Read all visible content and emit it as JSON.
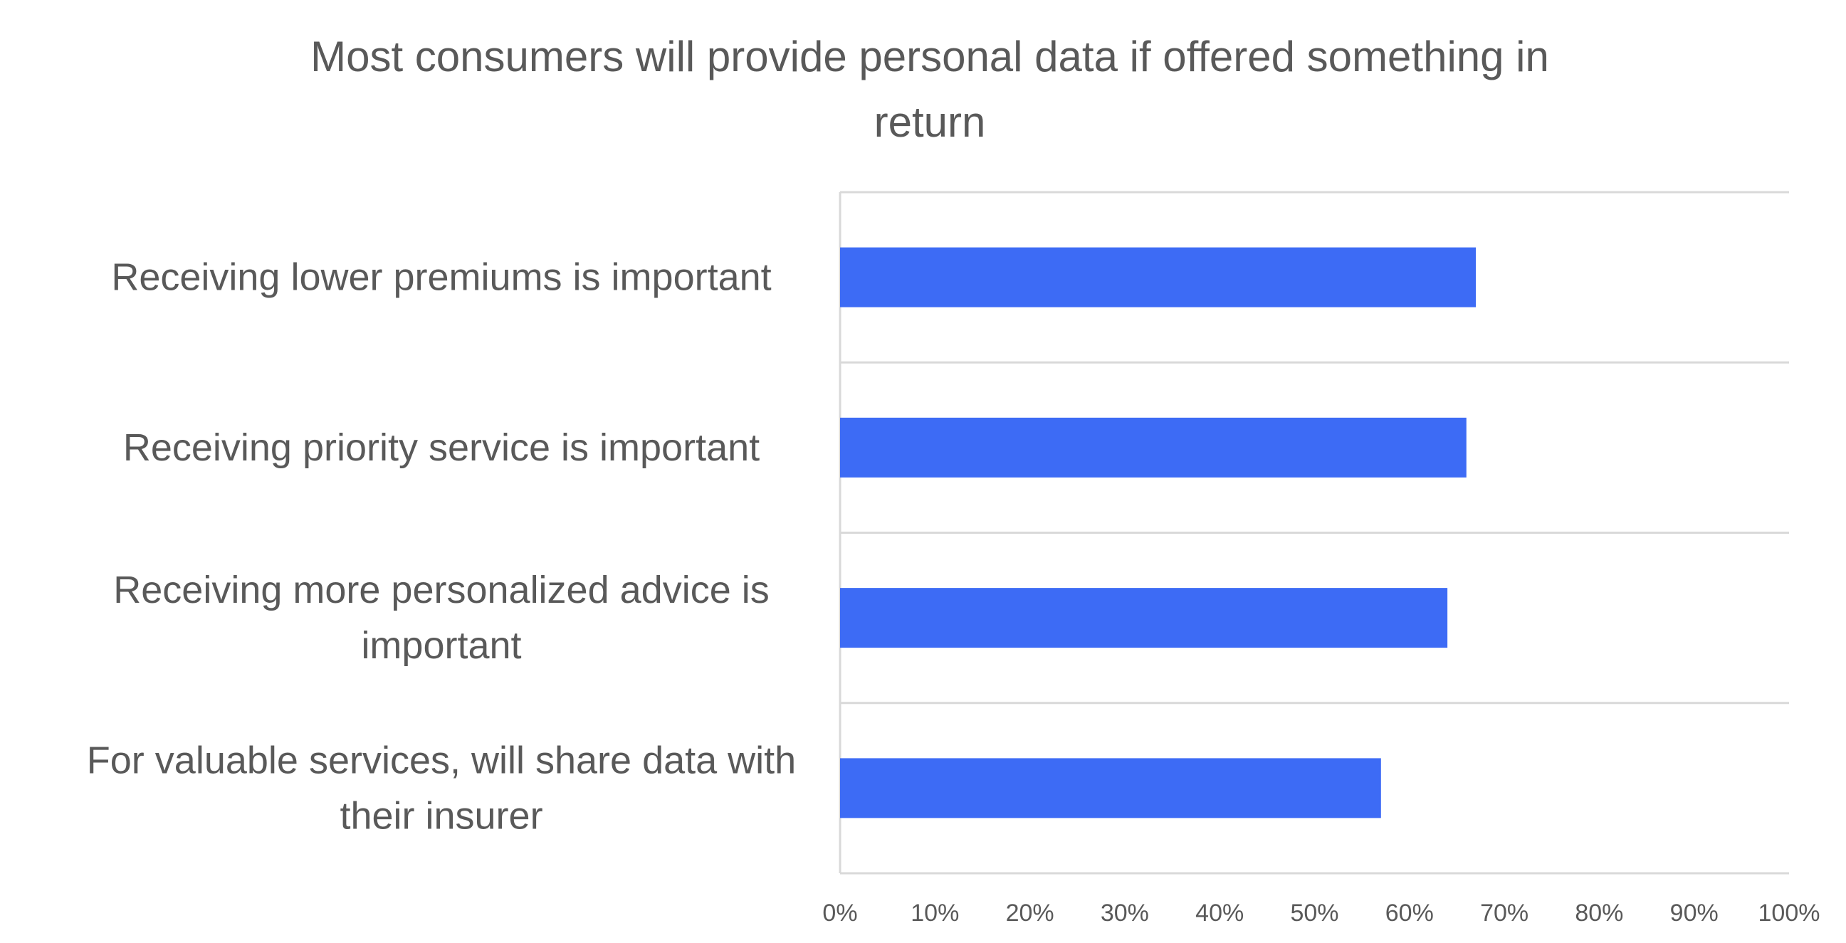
{
  "chart_data": {
    "type": "bar",
    "orientation": "horizontal",
    "title": "Most consumers will provide personal data if offered something in return",
    "title_lines": [
      "Most consumers will provide personal data if offered something in",
      "return"
    ],
    "categories": [
      "Receiving lower premiums is important",
      "Receiving priority service is important",
      "Receiving more personalized advice is important",
      "For valuable services, will share data with their insurer"
    ],
    "category_lines": [
      [
        "Receiving lower premiums is important"
      ],
      [
        "Receiving priority service is important"
      ],
      [
        "Receiving more personalized advice is",
        "important"
      ],
      [
        "For valuable services, will share data with",
        "their insurer"
      ]
    ],
    "values": [
      0.67,
      0.66,
      0.64,
      0.57
    ],
    "xlim": [
      0,
      1
    ],
    "x_ticks": [
      0,
      0.1,
      0.2,
      0.3,
      0.4,
      0.5,
      0.6,
      0.7,
      0.8,
      0.9,
      1.0
    ],
    "x_tick_labels": [
      "0%",
      "10%",
      "20%",
      "30%",
      "40%",
      "50%",
      "60%",
      "70%",
      "80%",
      "90%",
      "100%"
    ],
    "xlabel": "",
    "ylabel": "",
    "grid": "horizontal category separators",
    "legend": "none",
    "colors": {
      "bar": "#3D6BF5",
      "text": "#595959",
      "grid": "#D9D9D9"
    }
  }
}
